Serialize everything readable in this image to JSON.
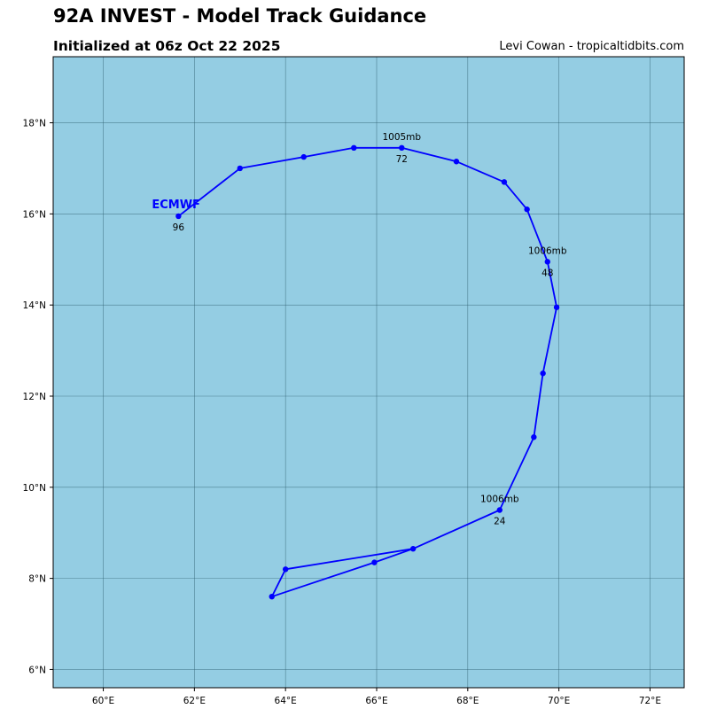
{
  "header": {
    "title": "92A INVEST - Model Track Guidance",
    "subtitle": "Initialized at 06z Oct 22 2025",
    "credit": "Levi Cowan - tropicaltidbits.com"
  },
  "colors": {
    "ocean": "#94cde3",
    "track": "#0000ff",
    "grid": "#2f5f6f",
    "frame": "#000000"
  },
  "chart_data": {
    "type": "map-track",
    "lon_range": [
      58.9,
      72.75
    ],
    "lat_range": [
      5.6,
      19.45
    ],
    "lon_ticks": [
      {
        "value": 60,
        "label": "60°E"
      },
      {
        "value": 62,
        "label": "62°E"
      },
      {
        "value": 64,
        "label": "64°E"
      },
      {
        "value": 66,
        "label": "66°E"
      },
      {
        "value": 68,
        "label": "68°E"
      },
      {
        "value": 70,
        "label": "70°E"
      },
      {
        "value": 72,
        "label": "72°E"
      }
    ],
    "lat_ticks": [
      {
        "value": 6,
        "label": "6°N"
      },
      {
        "value": 8,
        "label": "8°N"
      },
      {
        "value": 10,
        "label": "10°N"
      },
      {
        "value": 12,
        "label": "12°N"
      },
      {
        "value": 14,
        "label": "14°N"
      },
      {
        "value": 16,
        "label": "16°N"
      },
      {
        "value": 18,
        "label": "18°N"
      }
    ],
    "grid": true,
    "series": [
      {
        "name": "ECMWF",
        "points": [
          {
            "lon": 63.7,
            "lat": 7.6
          },
          {
            "lon": 64.0,
            "lat": 8.2
          },
          {
            "lon": 66.8,
            "lat": 8.65
          },
          {
            "lon": 68.7,
            "lat": 9.5
          },
          {
            "lon": 69.45,
            "lat": 11.1
          },
          {
            "lon": 69.65,
            "lat": 12.5
          },
          {
            "lon": 69.95,
            "lat": 13.95
          },
          {
            "lon": 69.75,
            "lat": 14.95
          },
          {
            "lon": 69.3,
            "lat": 16.1
          },
          {
            "lon": 68.8,
            "lat": 16.7
          },
          {
            "lon": 67.75,
            "lat": 17.15
          },
          {
            "lon": 66.55,
            "lat": 17.45
          },
          {
            "lon": 65.5,
            "lat": 17.45
          },
          {
            "lon": 64.4,
            "lat": 17.25
          },
          {
            "lon": 63.0,
            "lat": 17.0
          },
          {
            "lon": 61.65,
            "lat": 15.95
          }
        ],
        "extra_segment": [
          {
            "lon": 63.7,
            "lat": 7.6
          },
          {
            "lon": 65.95,
            "lat": 8.35
          },
          {
            "lon": 66.8,
            "lat": 8.65
          }
        ],
        "annotations": [
          {
            "lon": 68.7,
            "lat": 9.5,
            "pressure": "1006mb",
            "hour": "24"
          },
          {
            "lon": 69.75,
            "lat": 14.95,
            "pressure": "1006mb",
            "hour": "48"
          },
          {
            "lon": 66.55,
            "lat": 17.45,
            "pressure": "1005mb",
            "hour": "72"
          },
          {
            "lon": 61.65,
            "lat": 15.95,
            "pressure": "",
            "hour": "96"
          }
        ]
      }
    ]
  }
}
